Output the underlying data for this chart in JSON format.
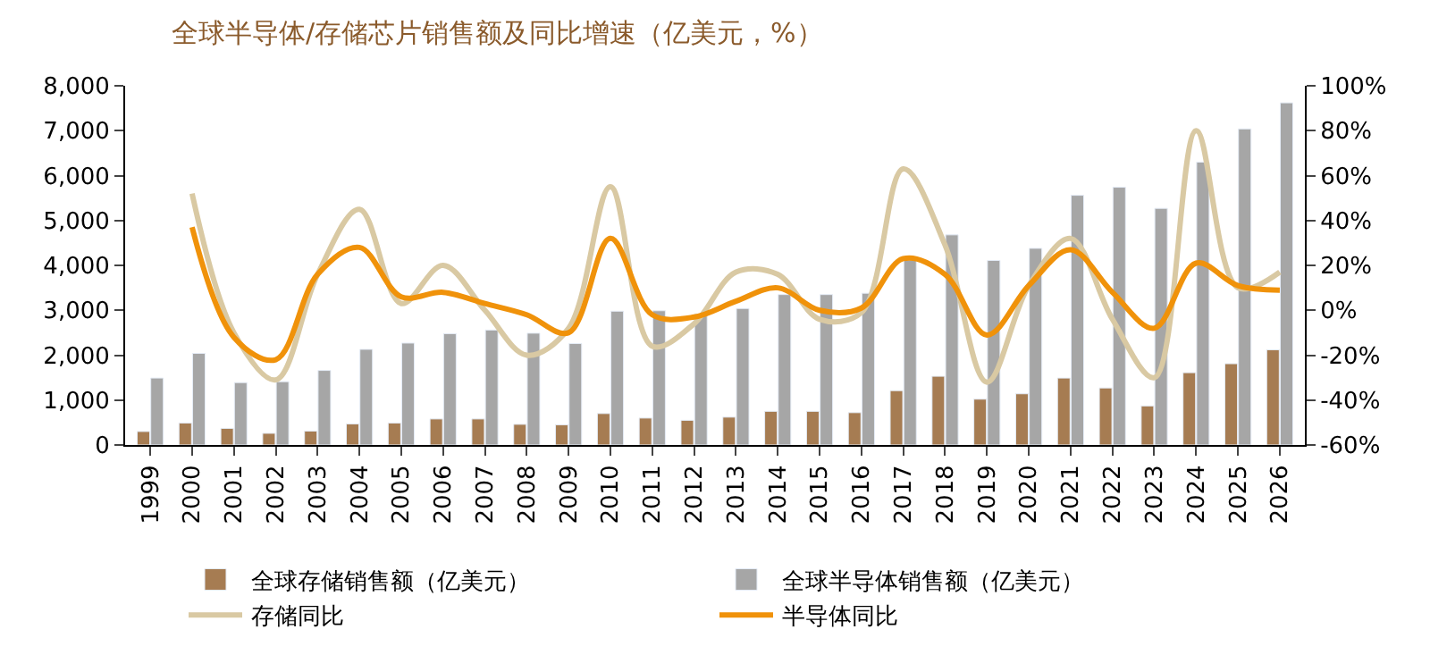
{
  "chart_data": {
    "type": "bar",
    "title": "全球半导体/存储芯片销售额及同比增速（亿美元，%）",
    "categories": [
      "1999",
      "2000",
      "2001",
      "2002",
      "2003",
      "2004",
      "2005",
      "2006",
      "2007",
      "2008",
      "2009",
      "2010",
      "2011",
      "2012",
      "2013",
      "2014",
      "2015",
      "2016",
      "2017",
      "2018",
      "2019",
      "2020",
      "2021",
      "2022",
      "2023",
      "2024",
      "2025",
      "2026"
    ],
    "series": [
      {
        "name": "全球存储销售额（亿美元）",
        "color": "#a67c52",
        "values": [
          300,
          490,
          370,
          260,
          310,
          470,
          490,
          580,
          580,
          460,
          450,
          700,
          600,
          550,
          620,
          750,
          750,
          720,
          1210,
          1530,
          1020,
          1140,
          1490,
          1270,
          870,
          1610,
          1810,
          2120
        ]
      },
      {
        "name": "全球半导体销售额（亿美元）",
        "color": "#a6a6a6",
        "values": [
          1490,
          2040,
          1390,
          1410,
          1660,
          2130,
          2270,
          2480,
          2560,
          2490,
          2260,
          2980,
          2990,
          2920,
          3040,
          3350,
          3350,
          3380,
          4120,
          4680,
          4110,
          4380,
          5560,
          5740,
          5270,
          6300,
          7040,
          7620
        ]
      },
      {
        "name": "存储同比",
        "type": "line",
        "axis": "y2",
        "color": "#d9c9a3",
        "values": [
          null,
          52,
          -10,
          -31,
          16,
          45,
          3,
          20,
          0,
          -20,
          -8,
          55,
          -16,
          -6,
          17,
          16,
          -4,
          -1,
          63,
          29,
          -32,
          11,
          32,
          -4,
          -30,
          80,
          10,
          17
        ]
      },
      {
        "name": "半导体同比",
        "type": "line",
        "axis": "y2",
        "color": "#f0920a",
        "values": [
          null,
          37,
          -12,
          -22,
          16,
          28,
          6,
          8,
          3,
          -2,
          -10,
          32,
          -2,
          -3,
          4,
          10,
          0,
          1,
          23,
          16,
          -11,
          11,
          27,
          8,
          -8,
          21,
          11,
          9
        ]
      }
    ],
    "ylim": [
      0,
      8000
    ],
    "yticks": [
      {
        "value": 0,
        "label": "0"
      },
      {
        "value": 1000,
        "label": "1,000"
      },
      {
        "value": 2000,
        "label": "2,000"
      },
      {
        "value": 3000,
        "label": "3,000"
      },
      {
        "value": 4000,
        "label": "4,000"
      },
      {
        "value": 5000,
        "label": "5,000"
      },
      {
        "value": 6000,
        "label": "6,000"
      },
      {
        "value": 7000,
        "label": "7,000"
      },
      {
        "value": 8000,
        "label": "8,000"
      }
    ],
    "y2lim": [
      -60,
      100
    ],
    "y2ticks": [
      {
        "value": -60,
        "label": "-60%"
      },
      {
        "value": -40,
        "label": "-40%"
      },
      {
        "value": -20,
        "label": "-20%"
      },
      {
        "value": 0,
        "label": "0%"
      },
      {
        "value": 20,
        "label": "20%"
      },
      {
        "value": 40,
        "label": "40%"
      },
      {
        "value": 60,
        "label": "60%"
      },
      {
        "value": 80,
        "label": "80%"
      },
      {
        "value": 100,
        "label": "100%"
      }
    ],
    "legend": "bottom",
    "marker": "none"
  }
}
